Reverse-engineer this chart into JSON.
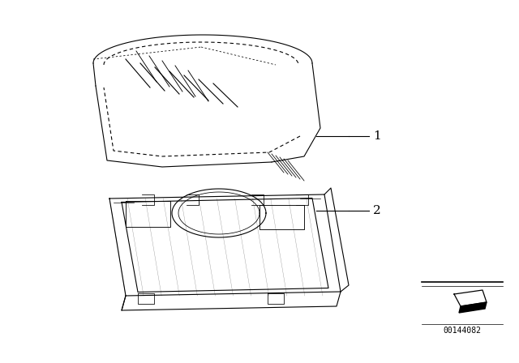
{
  "title": "",
  "background_color": "#ffffff",
  "part_number": "00144082",
  "callout_1_label": "1",
  "callout_2_label": "2",
  "line_color": "#000000",
  "figure_width": 6.4,
  "figure_height": 4.48,
  "dpi": 100
}
